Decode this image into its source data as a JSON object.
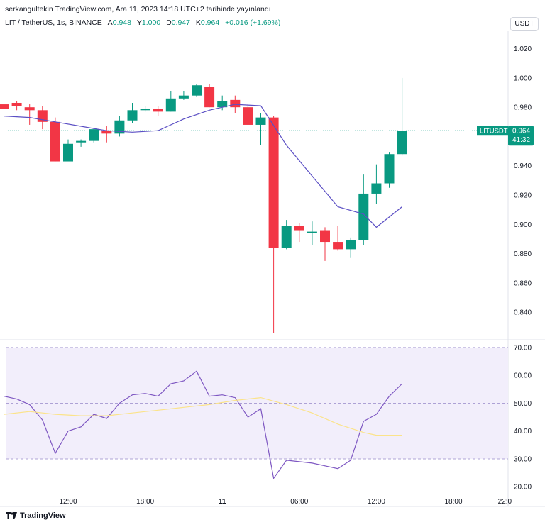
{
  "header": {
    "publisher": "serkangultekin TradingView.com, Ara 11, 2023 14:18 UTC+2 tarihinde yayınlandı"
  },
  "legend": {
    "symbol": "LIT / TetherUS, 1s, BINANCE",
    "open_label": "A",
    "open": "0.948",
    "high_label": "Y",
    "high": "1.000",
    "low_label": "D",
    "low": "0.947",
    "close_label": "K",
    "close": "0.964",
    "change": "+0.016 (+1.69%)"
  },
  "currency_button": "USDT",
  "price_badge": {
    "symbol": "LITUSDT",
    "price": "0.964",
    "countdown": "41:32"
  },
  "footer": {
    "brand": "TradingView"
  },
  "colors": {
    "up": "#089981",
    "down": "#f23645",
    "ma": "#5b4fc4",
    "rsi": "#7e57c2",
    "rsi_ma": "#fbe38a",
    "band": "#f2eefb"
  },
  "chart_data": [
    {
      "type": "candlestick",
      "yaxis_ticks": [
        "1.020",
        "1.000",
        "0.980",
        "0.960",
        "0.940",
        "0.920",
        "0.900",
        "0.880",
        "0.860",
        "0.840"
      ],
      "ylim": [
        0.826,
        1.03
      ],
      "xaxis_ticks": [
        {
          "label": "12:00",
          "x": 0
        },
        {
          "label": "18:00",
          "x": 6
        },
        {
          "label": "11",
          "x": 12
        },
        {
          "label": "06:00",
          "x": 18
        },
        {
          "label": "12:00",
          "x": 24
        },
        {
          "label": "18:00",
          "x": 30
        },
        {
          "label": "22:0",
          "x": 34
        }
      ],
      "candles": [
        {
          "x": -5,
          "o": 0.982,
          "h": 0.984,
          "l": 0.978,
          "c": 0.979
        },
        {
          "x": -4,
          "o": 0.983,
          "h": 0.984,
          "l": 0.978,
          "c": 0.981
        },
        {
          "x": -3,
          "o": 0.98,
          "h": 0.982,
          "l": 0.968,
          "c": 0.978
        },
        {
          "x": -2,
          "o": 0.978,
          "h": 0.981,
          "l": 0.965,
          "c": 0.97
        },
        {
          "x": -1,
          "o": 0.97,
          "h": 0.973,
          "l": 0.943,
          "c": 0.943
        },
        {
          "x": 0,
          "o": 0.943,
          "h": 0.958,
          "l": 0.943,
          "c": 0.955
        },
        {
          "x": 1,
          "o": 0.956,
          "h": 0.958,
          "l": 0.953,
          "c": 0.957
        },
        {
          "x": 2,
          "o": 0.957,
          "h": 0.966,
          "l": 0.956,
          "c": 0.965
        },
        {
          "x": 3,
          "o": 0.964,
          "h": 0.967,
          "l": 0.956,
          "c": 0.962
        },
        {
          "x": 4,
          "o": 0.962,
          "h": 0.974,
          "l": 0.96,
          "c": 0.971
        },
        {
          "x": 5,
          "o": 0.971,
          "h": 0.983,
          "l": 0.969,
          "c": 0.978
        },
        {
          "x": 6,
          "o": 0.978,
          "h": 0.981,
          "l": 0.977,
          "c": 0.979
        },
        {
          "x": 7,
          "o": 0.979,
          "h": 0.981,
          "l": 0.974,
          "c": 0.977
        },
        {
          "x": 8,
          "o": 0.977,
          "h": 0.991,
          "l": 0.977,
          "c": 0.986
        },
        {
          "x": 9,
          "o": 0.986,
          "h": 0.991,
          "l": 0.985,
          "c": 0.988
        },
        {
          "x": 10,
          "o": 0.988,
          "h": 0.996,
          "l": 0.987,
          "c": 0.995
        },
        {
          "x": 11,
          "o": 0.994,
          "h": 0.996,
          "l": 0.98,
          "c": 0.98
        },
        {
          "x": 12,
          "o": 0.98,
          "h": 0.988,
          "l": 0.978,
          "c": 0.984
        },
        {
          "x": 13,
          "o": 0.985,
          "h": 0.988,
          "l": 0.976,
          "c": 0.98
        },
        {
          "x": 14,
          "o": 0.98,
          "h": 0.982,
          "l": 0.968,
          "c": 0.968
        },
        {
          "x": 15,
          "o": 0.968,
          "h": 0.976,
          "l": 0.954,
          "c": 0.973
        },
        {
          "x": 16,
          "o": 0.973,
          "h": 0.974,
          "l": 0.826,
          "c": 0.884
        },
        {
          "x": 17,
          "o": 0.884,
          "h": 0.903,
          "l": 0.883,
          "c": 0.899
        },
        {
          "x": 18,
          "o": 0.899,
          "h": 0.901,
          "l": 0.888,
          "c": 0.896
        },
        {
          "x": 19,
          "o": 0.895,
          "h": 0.902,
          "l": 0.886,
          "c": 0.895
        },
        {
          "x": 20,
          "o": 0.896,
          "h": 0.898,
          "l": 0.875,
          "c": 0.888
        },
        {
          "x": 21,
          "o": 0.888,
          "h": 0.899,
          "l": 0.882,
          "c": 0.883
        },
        {
          "x": 22,
          "o": 0.883,
          "h": 0.891,
          "l": 0.877,
          "c": 0.889
        },
        {
          "x": 23,
          "o": 0.889,
          "h": 0.934,
          "l": 0.886,
          "c": 0.921
        },
        {
          "x": 24,
          "o": 0.921,
          "h": 0.941,
          "l": 0.914,
          "c": 0.928
        },
        {
          "x": 25,
          "o": 0.928,
          "h": 0.949,
          "l": 0.925,
          "c": 0.948
        },
        {
          "x": 26,
          "o": 0.948,
          "h": 1.0,
          "l": 0.947,
          "c": 0.964
        }
      ],
      "moving_average": [
        {
          "x": -5,
          "y": 0.974
        },
        {
          "x": -3,
          "y": 0.973
        },
        {
          "x": -1,
          "y": 0.97
        },
        {
          "x": 1,
          "y": 0.967
        },
        {
          "x": 3,
          "y": 0.964
        },
        {
          "x": 5,
          "y": 0.963
        },
        {
          "x": 7,
          "y": 0.964
        },
        {
          "x": 9,
          "y": 0.972
        },
        {
          "x": 11,
          "y": 0.978
        },
        {
          "x": 13,
          "y": 0.982
        },
        {
          "x": 15,
          "y": 0.981
        },
        {
          "x": 17,
          "y": 0.954
        },
        {
          "x": 19,
          "y": 0.933
        },
        {
          "x": 21,
          "y": 0.912
        },
        {
          "x": 23,
          "y": 0.907
        },
        {
          "x": 24,
          "y": 0.898
        },
        {
          "x": 26,
          "y": 0.912
        }
      ],
      "last_price": 0.964
    },
    {
      "type": "line",
      "indicator": "rsi",
      "yaxis_ticks": [
        "70.00",
        "60.00",
        "50.00",
        "40.00",
        "30.00",
        "20.00"
      ],
      "ylim": [
        17,
        71
      ],
      "band": [
        30,
        70
      ],
      "midline": 50,
      "series": [
        {
          "values": [
            {
              "x": -5,
              "y": 52.5
            },
            {
              "x": -4,
              "y": 51.5
            },
            {
              "x": -3,
              "y": 49.5
            },
            {
              "x": -2,
              "y": 44
            },
            {
              "x": -1,
              "y": 32
            },
            {
              "x": 0,
              "y": 40
            },
            {
              "x": 1,
              "y": 41.5
            },
            {
              "x": 2,
              "y": 46
            },
            {
              "x": 3,
              "y": 44.5
            },
            {
              "x": 4,
              "y": 50
            },
            {
              "x": 5,
              "y": 53
            },
            {
              "x": 6,
              "y": 53.5
            },
            {
              "x": 7,
              "y": 52.5
            },
            {
              "x": 8,
              "y": 57
            },
            {
              "x": 9,
              "y": 58
            },
            {
              "x": 10,
              "y": 61.5
            },
            {
              "x": 11,
              "y": 52.5
            },
            {
              "x": 12,
              "y": 53
            },
            {
              "x": 13,
              "y": 52
            },
            {
              "x": 14,
              "y": 45
            },
            {
              "x": 15,
              "y": 48
            },
            {
              "x": 16,
              "y": 23
            },
            {
              "x": 17,
              "y": 29.5
            },
            {
              "x": 18,
              "y": 29
            },
            {
              "x": 19,
              "y": 28.5
            },
            {
              "x": 20,
              "y": 27.5
            },
            {
              "x": 21,
              "y": 26.5
            },
            {
              "x": 22,
              "y": 29.5
            },
            {
              "x": 23,
              "y": 43.5
            },
            {
              "x": 24,
              "y": 46
            },
            {
              "x": 25,
              "y": 52.5
            },
            {
              "x": 26,
              "y": 57
            }
          ]
        },
        {
          "values": [
            {
              "x": -5,
              "y": 46
            },
            {
              "x": -3,
              "y": 47
            },
            {
              "x": -1,
              "y": 46
            },
            {
              "x": 1,
              "y": 45.5
            },
            {
              "x": 3,
              "y": 45.5
            },
            {
              "x": 5,
              "y": 46.5
            },
            {
              "x": 7,
              "y": 47.5
            },
            {
              "x": 9,
              "y": 48.5
            },
            {
              "x": 11,
              "y": 49.5
            },
            {
              "x": 13,
              "y": 51
            },
            {
              "x": 15,
              "y": 52
            },
            {
              "x": 17,
              "y": 49.5
            },
            {
              "x": 19,
              "y": 46.5
            },
            {
              "x": 21,
              "y": 42.5
            },
            {
              "x": 23,
              "y": 39.5
            },
            {
              "x": 24,
              "y": 38.5
            },
            {
              "x": 26,
              "y": 38.5
            }
          ]
        }
      ]
    }
  ]
}
